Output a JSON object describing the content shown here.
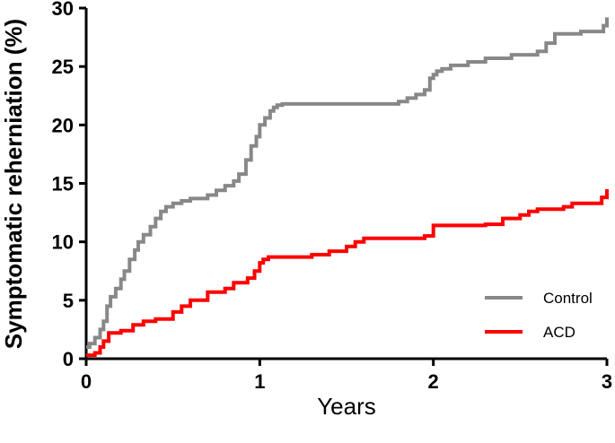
{
  "chart_data": {
    "type": "line",
    "xlabel": "Years",
    "ylabel": "Symptomatic reherniation (%)",
    "xlim": [
      0,
      3
    ],
    "ylim": [
      0,
      30
    ],
    "x_ticks": [
      0,
      1,
      2,
      3
    ],
    "x_tick_labels": [
      "0",
      "1",
      "2",
      "3"
    ],
    "y_ticks": [
      0,
      5,
      10,
      15,
      20,
      25,
      30
    ],
    "y_tick_labels": [
      "0",
      "5",
      "10",
      "15",
      "20",
      "25",
      "30"
    ],
    "grid": false,
    "legend_position": "bottom-right",
    "step": true,
    "series": [
      {
        "name": "Control",
        "color": "#888888",
        "x": [
          0,
          0.02,
          0.05,
          0.08,
          0.1,
          0.12,
          0.14,
          0.17,
          0.2,
          0.22,
          0.25,
          0.28,
          0.3,
          0.33,
          0.37,
          0.4,
          0.43,
          0.46,
          0.5,
          0.55,
          0.6,
          0.7,
          0.75,
          0.8,
          0.85,
          0.88,
          0.92,
          0.95,
          0.98,
          1.0,
          1.03,
          1.06,
          1.08,
          1.1,
          1.13,
          1.16,
          1.2,
          1.8,
          1.85,
          1.9,
          1.95,
          1.98,
          2.0,
          2.02,
          2.05,
          2.1,
          2.2,
          2.3,
          2.45,
          2.6,
          2.65,
          2.7,
          2.85,
          2.95,
          2.98,
          3.0
        ],
        "y": [
          1.0,
          1.3,
          1.8,
          2.5,
          3.2,
          4.5,
          5.3,
          6.0,
          6.8,
          7.5,
          8.5,
          9.3,
          10.0,
          10.6,
          11.3,
          12.0,
          12.6,
          13.0,
          13.3,
          13.5,
          13.7,
          14.0,
          14.4,
          14.8,
          15.2,
          15.8,
          17.0,
          18.2,
          19.0,
          20.0,
          20.6,
          21.2,
          21.5,
          21.7,
          21.8,
          21.8,
          21.8,
          22.0,
          22.3,
          22.6,
          23.0,
          24.0,
          24.3,
          24.6,
          24.8,
          25.1,
          25.4,
          25.7,
          26.0,
          26.3,
          27.0,
          27.8,
          28.0,
          28.0,
          28.5,
          29.2
        ]
      },
      {
        "name": "ACD",
        "color": "#ff0000",
        "x": [
          0,
          0.05,
          0.08,
          0.1,
          0.13,
          0.2,
          0.27,
          0.33,
          0.4,
          0.5,
          0.55,
          0.6,
          0.7,
          0.8,
          0.85,
          0.93,
          0.97,
          1.0,
          1.02,
          1.05,
          1.3,
          1.4,
          1.5,
          1.55,
          1.6,
          1.95,
          2.0,
          2.3,
          2.4,
          2.5,
          2.55,
          2.6,
          2.75,
          2.8,
          2.97,
          3.0
        ],
        "y": [
          0.3,
          0.5,
          1.0,
          1.5,
          2.2,
          2.4,
          2.9,
          3.2,
          3.4,
          4.0,
          4.5,
          5.0,
          5.7,
          6.0,
          6.5,
          6.9,
          7.5,
          8.2,
          8.5,
          8.7,
          8.9,
          9.2,
          9.6,
          10.0,
          10.3,
          10.5,
          11.4,
          11.5,
          12.0,
          12.3,
          12.6,
          12.8,
          13.0,
          13.3,
          13.8,
          14.5
        ]
      }
    ]
  }
}
